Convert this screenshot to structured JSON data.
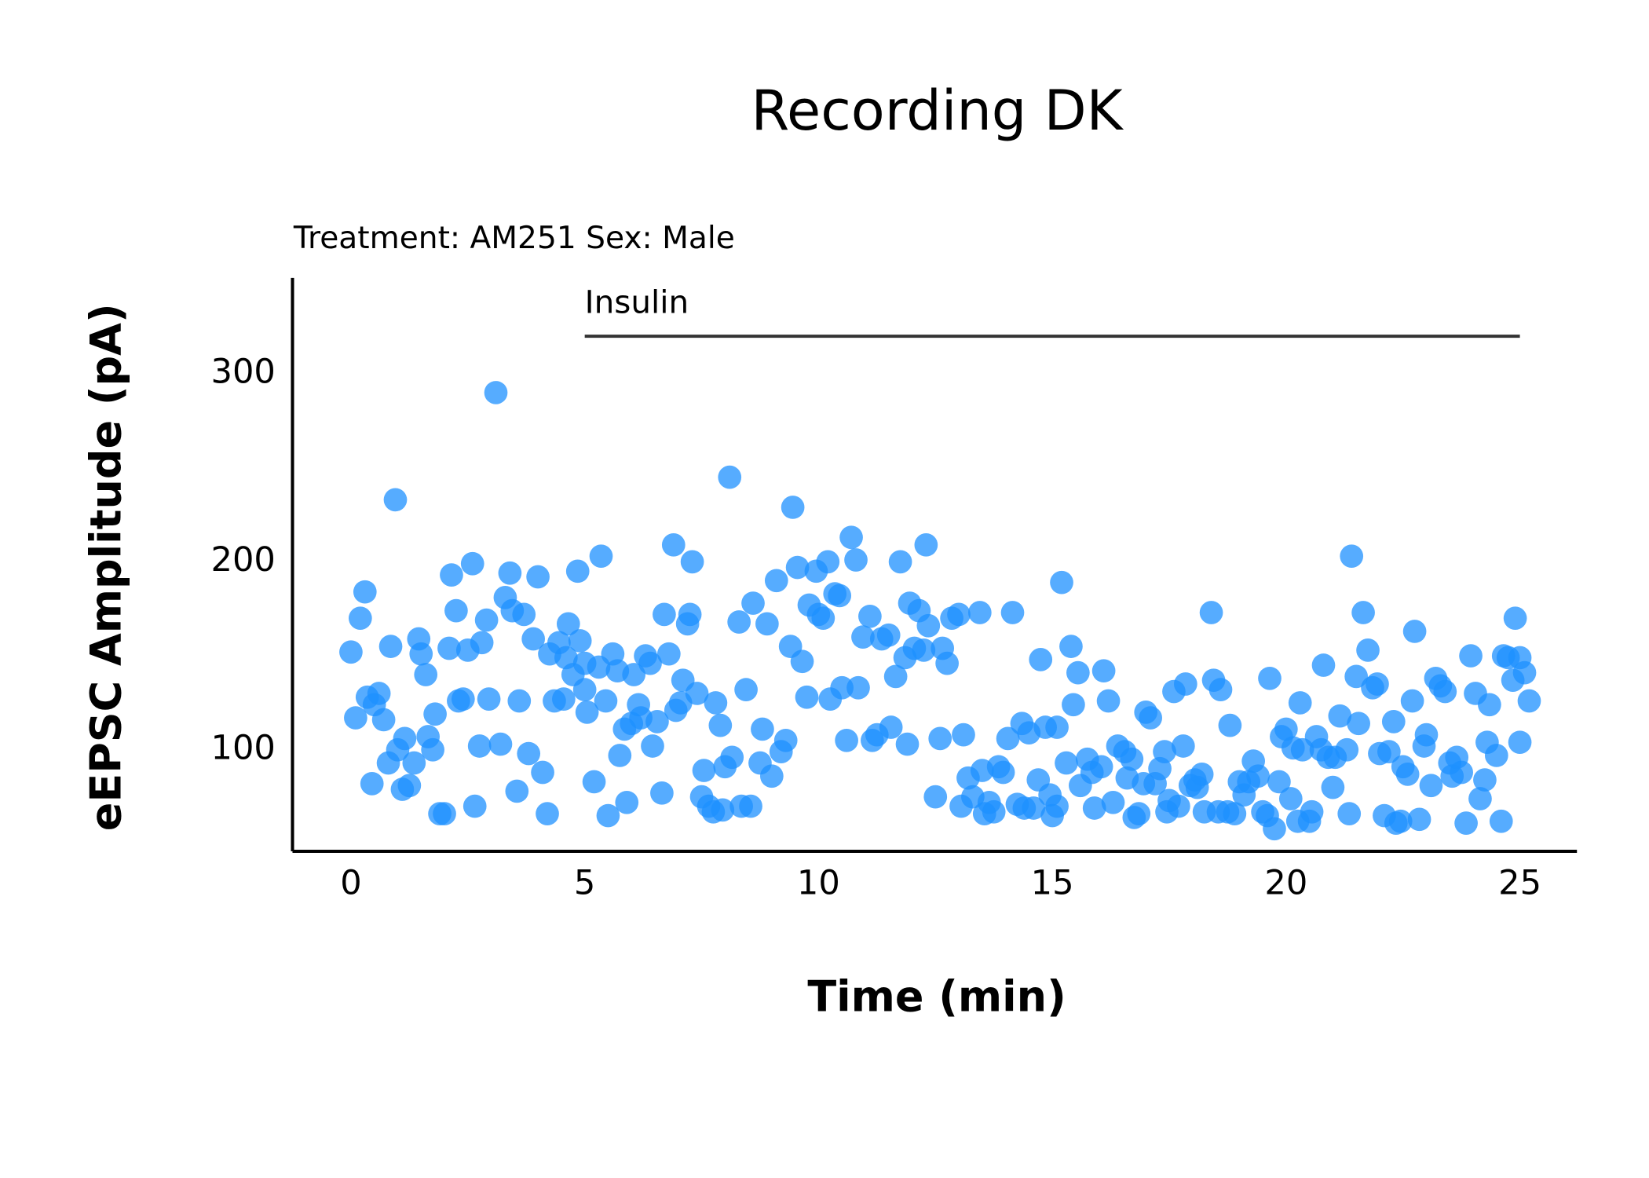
{
  "chart_data": {
    "type": "scatter",
    "title": "Recording DK",
    "subtitle": "Treatment: AM251  Sex: Male",
    "xlabel": "Time (min)",
    "ylabel": "eEPSC Amplitude (pA)",
    "color": "#1e90ff",
    "xlim": [
      -1.25,
      26.22
    ],
    "ylim": [
      46,
      351
    ],
    "xticks": [
      0,
      5,
      10,
      15,
      20,
      25
    ],
    "yticks": [
      100,
      200,
      300
    ],
    "annotations": [
      {
        "text": "Insulin",
        "x": [
          5,
          25
        ],
        "y": 320
      }
    ],
    "x": [
      0.0,
      0.1,
      0.2,
      0.3,
      0.35,
      0.45,
      0.5,
      0.6,
      0.7,
      0.8,
      0.85,
      0.95,
      1.0,
      1.1,
      1.15,
      1.25,
      1.35,
      1.45,
      1.5,
      1.6,
      1.65,
      1.75,
      1.8,
      1.9,
      2.0,
      2.1,
      2.15,
      2.25,
      2.3,
      2.4,
      2.5,
      2.6,
      2.65,
      2.75,
      2.8,
      2.9,
      2.95,
      3.1,
      3.2,
      3.3,
      3.4,
      3.45,
      3.55,
      3.6,
      3.7,
      3.8,
      3.9,
      4.0,
      4.1,
      4.2,
      4.25,
      4.35,
      4.45,
      4.55,
      4.6,
      4.65,
      4.75,
      4.85,
      4.9,
      5.0,
      5.0,
      5.05,
      5.2,
      5.3,
      5.35,
      5.45,
      5.5,
      5.6,
      5.7,
      5.75,
      5.85,
      5.9,
      6.0,
      6.05,
      6.15,
      6.2,
      6.3,
      6.4,
      6.45,
      6.55,
      6.65,
      6.7,
      6.8,
      6.9,
      6.95,
      7.05,
      7.1,
      7.2,
      7.25,
      7.3,
      7.4,
      7.5,
      7.55,
      7.65,
      7.75,
      7.8,
      7.9,
      7.95,
      8.0,
      8.1,
      8.15,
      8.3,
      8.35,
      8.45,
      8.55,
      8.6,
      8.75,
      8.8,
      8.9,
      9.0,
      9.1,
      9.2,
      9.3,
      9.4,
      9.45,
      9.55,
      9.65,
      9.75,
      9.8,
      9.95,
      10.0,
      10.1,
      10.2,
      10.25,
      10.35,
      10.45,
      10.5,
      10.6,
      10.7,
      10.8,
      10.85,
      10.95,
      11.1,
      11.15,
      11.25,
      11.35,
      11.5,
      11.55,
      11.65,
      11.75,
      11.85,
      11.9,
      11.95,
      12.05,
      12.15,
      12.25,
      12.3,
      12.35,
      12.5,
      12.6,
      12.65,
      12.75,
      12.85,
      13.0,
      13.05,
      13.1,
      13.2,
      13.3,
      13.45,
      13.5,
      13.55,
      13.65,
      13.75,
      13.85,
      13.95,
      14.05,
      14.15,
      14.25,
      14.35,
      14.4,
      14.5,
      14.6,
      14.7,
      14.75,
      14.85,
      14.95,
      15.0,
      15.1,
      15.1,
      15.2,
      15.3,
      15.4,
      15.45,
      15.55,
      15.6,
      15.75,
      15.85,
      15.9,
      16.05,
      16.1,
      16.2,
      16.3,
      16.4,
      16.55,
      16.6,
      16.7,
      16.75,
      16.85,
      16.95,
      17.0,
      17.1,
      17.2,
      17.3,
      17.4,
      17.45,
      17.5,
      17.6,
      17.7,
      17.8,
      17.85,
      17.95,
      18.05,
      18.1,
      18.2,
      18.25,
      18.4,
      18.45,
      18.55,
      18.6,
      18.75,
      18.8,
      18.9,
      19.0,
      19.1,
      19.2,
      19.3,
      19.4,
      19.5,
      19.6,
      19.65,
      19.75,
      19.85,
      19.9,
      20.0,
      20.1,
      20.15,
      20.25,
      20.3,
      20.35,
      20.5,
      20.55,
      20.65,
      20.75,
      20.8,
      20.9,
      21.0,
      21.05,
      21.15,
      21.3,
      21.35,
      21.4,
      21.5,
      21.55,
      21.65,
      21.75,
      21.85,
      21.95,
      22.0,
      22.1,
      22.2,
      22.3,
      22.35,
      22.45,
      22.5,
      22.6,
      22.7,
      22.75,
      22.85,
      22.95,
      23.0,
      23.1,
      23.2,
      23.3,
      23.4,
      23.5,
      23.55,
      23.65,
      23.75,
      23.85,
      23.95,
      24.05,
      24.15,
      24.25,
      24.3,
      24.35,
      24.5,
      24.6,
      24.65,
      24.75,
      24.85,
      24.9,
      25.0,
      25.0,
      25.1,
      25.2
    ],
    "y": [
      152,
      117,
      170,
      184,
      128,
      82,
      124,
      130,
      116,
      93,
      155,
      233,
      100,
      79,
      106,
      81,
      93,
      159,
      151,
      140,
      107,
      100,
      119,
      66,
      66,
      154,
      193,
      174,
      126,
      127,
      153,
      199,
      70,
      102,
      157,
      169,
      127,
      290,
      103,
      181,
      194,
      174,
      78,
      126,
      172,
      98,
      159,
      192,
      88,
      66,
      151,
      126,
      157,
      127,
      149,
      167,
      140,
      195,
      158,
      146,
      132,
      120,
      83,
      144,
      203,
      126,
      65,
      151,
      142,
      97,
      111,
      72,
      114,
      140,
      124,
      117,
      150,
      146,
      102,
      115,
      77,
      172,
      151,
      209,
      121,
      125,
      137,
      167,
      172,
      200,
      130,
      75,
      89,
      70,
      67,
      125,
      113,
      68,
      91,
      245,
      96,
      168,
      70,
      132,
      70,
      178,
      93,
      111,
      167,
      86,
      190,
      99,
      105,
      155,
      229,
      197,
      147,
      128,
      177,
      195,
      172,
      170,
      200,
      127,
      183,
      182,
      133,
      105,
      213,
      201,
      133,
      160,
      171,
      105,
      108,
      159,
      161,
      112,
      139,
      200,
      149,
      103,
      178,
      154,
      174,
      153,
      209,
      166,
      75,
      106,
      154,
      146,
      170,
      172,
      70,
      108,
      85,
      75,
      173,
      89,
      66,
      72,
      67,
      91,
      88,
      106,
      173,
      71,
      114,
      69,
      109,
      69,
      84,
      148,
      112,
      76,
      65,
      70,
      112,
      189,
      93,
      155,
      124,
      141,
      81,
      95,
      88,
      69,
      91,
      142,
      126,
      72,
      102,
      99,
      85,
      95,
      64,
      66,
      82,
      120,
      117,
      82,
      90,
      99,
      67,
      73,
      131,
      70,
      102,
      135,
      81,
      84,
      80,
      87,
      67,
      173,
      137,
      67,
      132,
      67,
      113,
      66,
      83,
      76,
      83,
      94,
      86,
      67,
      65,
      138,
      58,
      83,
      107,
      111,
      74,
      101,
      62,
      125,
      100,
      62,
      67,
      107,
      100,
      145,
      96,
      80,
      96,
      118,
      100,
      66,
      203,
      139,
      114,
      173,
      153,
      133,
      135,
      98,
      65,
      99,
      115,
      61,
      62,
      91,
      87,
      126,
      163,
      63,
      102,
      108,
      81,
      138,
      134,
      131,
      93,
      86,
      96,
      88,
      61,
      150,
      130,
      74,
      84,
      104,
      124,
      97,
      62,
      150,
      149,
      137,
      170,
      149,
      104,
      141,
      126
    ]
  }
}
